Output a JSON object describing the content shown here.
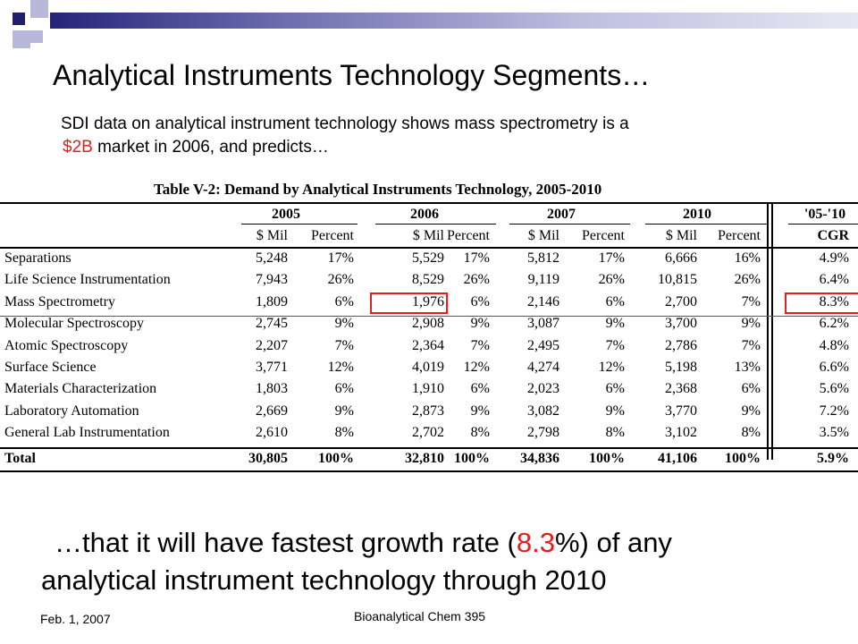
{
  "slide": {
    "title": "Analytical Instruments Technology Segments…",
    "subtitle_line1": "SDI data on analytical instrument technology shows mass spectrometry is a",
    "subtitle_line2_red": "$2B",
    "subtitle_line2_rest": " market in 2006, and predicts…",
    "conclusion_part1": "…that it will have fastest growth rate (",
    "conclusion_red": "8.3",
    "conclusion_part2": "%) of any",
    "conclusion_line2": "analytical instrument technology through 2010",
    "footer_date": "Feb. 1, 2007",
    "footer_course": "Bioanalytical Chem 395"
  },
  "table": {
    "title": "Table V-2: Demand by Analytical Instruments Technology, 2005-2010",
    "years": [
      "2005",
      "2006",
      "2007",
      "2010",
      "'05-'10"
    ],
    "subheaders": [
      "$ Mil",
      "Percent",
      "$ Mil",
      "Percent",
      "$ Mil",
      "Percent",
      "$ Mil",
      "Percent",
      "CGR"
    ],
    "rows": [
      {
        "name": "Separations",
        "cells": [
          "5,248",
          "17%",
          "5,529",
          "17%",
          "5,812",
          "17%",
          "6,666",
          "16%",
          "4.9%"
        ]
      },
      {
        "name": "Life Science Instrumentation",
        "cells": [
          "7,943",
          "26%",
          "8,529",
          "26%",
          "9,119",
          "26%",
          "10,815",
          "26%",
          "6.4%"
        ]
      },
      {
        "name": "Mass Spectrometry",
        "cells": [
          "1,809",
          "6%",
          "1,976",
          "6%",
          "2,146",
          "6%",
          "2,700",
          "7%",
          "8.3%"
        ]
      },
      {
        "name": "Molecular Spectroscopy",
        "cells": [
          "2,745",
          "9%",
          "2,908",
          "9%",
          "3,087",
          "9%",
          "3,700",
          "9%",
          "6.2%"
        ]
      },
      {
        "name": "Atomic Spectroscopy",
        "cells": [
          "2,207",
          "7%",
          "2,364",
          "7%",
          "2,495",
          "7%",
          "2,786",
          "7%",
          "4.8%"
        ]
      },
      {
        "name": "Surface Science",
        "cells": [
          "3,771",
          "12%",
          "4,019",
          "12%",
          "4,274",
          "12%",
          "5,198",
          "13%",
          "6.6%"
        ]
      },
      {
        "name": "Materials Characterization",
        "cells": [
          "1,803",
          "6%",
          "1,910",
          "6%",
          "2,023",
          "6%",
          "2,368",
          "6%",
          "5.6%"
        ]
      },
      {
        "name": "Laboratory Automation",
        "cells": [
          "2,669",
          "9%",
          "2,873",
          "9%",
          "3,082",
          "9%",
          "3,770",
          "9%",
          "7.2%"
        ]
      },
      {
        "name": "General Lab Instrumentation",
        "cells": [
          "2,610",
          "8%",
          "2,702",
          "8%",
          "2,798",
          "8%",
          "3,102",
          "8%",
          "3.5%"
        ]
      }
    ],
    "total": {
      "name": "Total",
      "cells": [
        "30,805",
        "100%",
        "32,810",
        "100%",
        "34,836",
        "100%",
        "41,106",
        "100%",
        "5.9%"
      ]
    },
    "highlighted": [
      "Mass Spectrometry 2006 $ Mil",
      "Mass Spectrometry CGR"
    ]
  },
  "colors": {
    "accent_red": "#e02020",
    "bar_dark": "#24247a",
    "square_dark": "#1f1f6e",
    "square_light": "#b7b7dc"
  }
}
